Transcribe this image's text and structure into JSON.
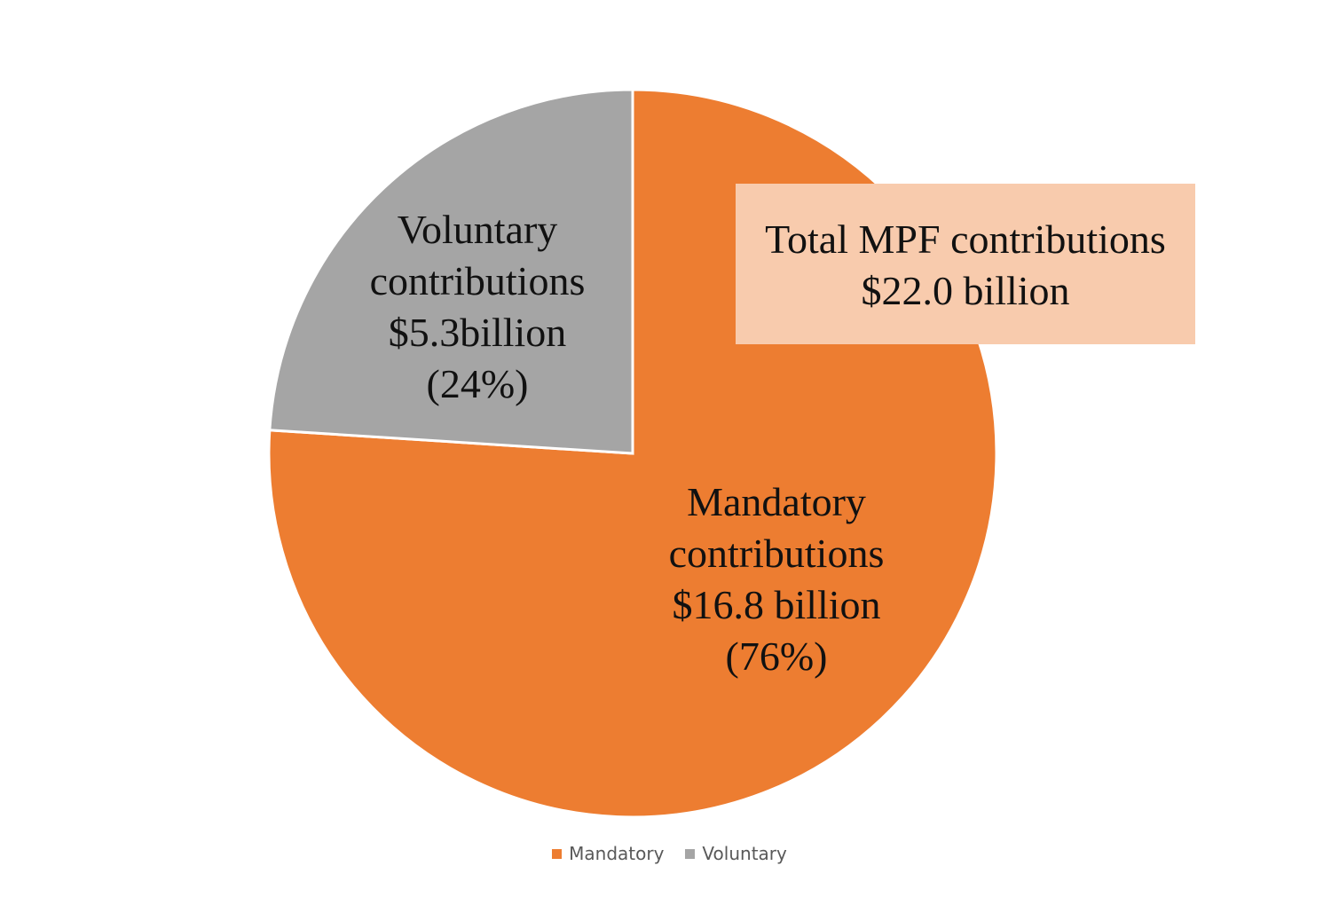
{
  "chart_data": {
    "type": "pie",
    "unit": "billion",
    "slices": [
      {
        "name": "Mandatory",
        "value": 16.8,
        "percent": 76,
        "color": "#ed7d31",
        "label_lines": [
          "Mandatory",
          "contributions",
          "$16.8 billion",
          "(76%)"
        ]
      },
      {
        "name": "Voluntary",
        "value": 5.3,
        "percent": 24,
        "color": "#a5a5a5",
        "label_lines": [
          "Voluntary",
          "contributions",
          "$5.3billion",
          "(24%)"
        ]
      }
    ],
    "total": {
      "value": 22.0,
      "lines": [
        "Total MPF contributions",
        "$22.0 billion"
      ],
      "color": "#f8cbad"
    },
    "legend": {
      "position": "bottom",
      "entries": [
        "Mandatory",
        "Voluntary"
      ]
    }
  }
}
